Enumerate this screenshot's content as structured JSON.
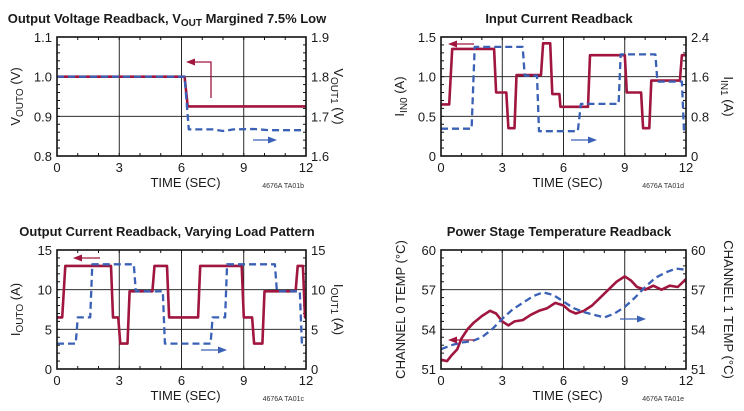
{
  "colors": {
    "ch0": "#a0163f",
    "ch1": "#3a61b6",
    "arrow_left": "#a0163f",
    "arrow_right": "#3a61b6"
  },
  "chart_data": [
    {
      "id": "vout",
      "type": "line",
      "title": "Output Voltage Readback, VOUT Margined 7.5% Low",
      "title_parts": [
        "Output Voltage Readback, V",
        "OUT",
        " Margined 7.5% Low"
      ],
      "xlabel": "TIME (SEC)",
      "ylabel_left": "VOUTO (V)",
      "ylabel_left_parts": [
        "V",
        "OUTO",
        " (V)"
      ],
      "ylabel_right": "VOUT1 (V)",
      "ylabel_right_parts": [
        "V",
        "OUT1",
        " (V)"
      ],
      "code": "4676A TA01b",
      "xlim": [
        0,
        12
      ],
      "ylim_left": [
        0.8,
        1.1
      ],
      "ylim_right": [
        1.6,
        1.9
      ],
      "x_ticks": [
        "0",
        "3",
        "6",
        "9",
        "12"
      ],
      "y_ticks_left": [
        "0.8",
        "0.9",
        "1.0",
        "1.1"
      ],
      "y_ticks_right": [
        "1.6",
        "1.7",
        "1.8",
        "1.9"
      ],
      "grid": true,
      "series": [
        {
          "axis": "left",
          "style": "solid",
          "points": [
            [
              0,
              1.0
            ],
            [
              6.15,
              1.0
            ],
            [
              6.3,
              0.925
            ],
            [
              12,
              0.925
            ]
          ]
        },
        {
          "axis": "right",
          "style": "dashed",
          "points": [
            [
              0,
              1.8
            ],
            [
              6.15,
              1.8
            ],
            [
              6.35,
              1.667
            ],
            [
              7.5,
              1.667
            ],
            [
              8.0,
              1.663
            ],
            [
              8.5,
              1.667
            ],
            [
              9.5,
              1.668
            ],
            [
              10.2,
              1.665
            ],
            [
              12,
              1.665
            ]
          ]
        }
      ]
    },
    {
      "id": "iin",
      "type": "line",
      "title": "Input Current Readback",
      "title_parts": [
        "Input Current Readback",
        "",
        ""
      ],
      "xlabel": "TIME (SEC)",
      "ylabel_left": "IIN0 (A)",
      "ylabel_left_parts": [
        "I",
        "IN0",
        " (A)"
      ],
      "ylabel_right": "IIN1 (A)",
      "ylabel_right_parts": [
        "I",
        "IN1",
        " (A)"
      ],
      "code": "4676A TA01d",
      "xlim": [
        0,
        12
      ],
      "ylim_left": [
        0,
        1.5
      ],
      "ylim_right": [
        0,
        2.4
      ],
      "x_ticks": [
        "0",
        "3",
        "6",
        "9",
        "12"
      ],
      "y_ticks_left": [
        "0",
        "0.5",
        "1.0",
        "1.5"
      ],
      "y_ticks_right": [
        "0",
        "0.8",
        "1.6",
        "2.4"
      ],
      "grid": true,
      "series": [
        {
          "axis": "left",
          "style": "solid",
          "points": [
            [
              0,
              0.65
            ],
            [
              0.4,
              0.65
            ],
            [
              0.55,
              1.35
            ],
            [
              2.6,
              1.35
            ],
            [
              2.7,
              0.8
            ],
            [
              3.2,
              0.8
            ],
            [
              3.3,
              0.35
            ],
            [
              3.6,
              0.35
            ],
            [
              3.7,
              1.02
            ],
            [
              4.9,
              1.02
            ],
            [
              5.0,
              1.42
            ],
            [
              5.35,
              1.42
            ],
            [
              5.45,
              0.78
            ],
            [
              5.8,
              0.78
            ],
            [
              5.85,
              0.62
            ],
            [
              7.2,
              0.62
            ],
            [
              7.3,
              1.27
            ],
            [
              9.0,
              1.27
            ],
            [
              9.1,
              0.8
            ],
            [
              9.8,
              0.8
            ],
            [
              9.9,
              0.35
            ],
            [
              10.2,
              0.35
            ],
            [
              10.3,
              0.95
            ],
            [
              11.7,
              0.95
            ],
            [
              11.8,
              1.27
            ],
            [
              12,
              1.27
            ]
          ]
        },
        {
          "axis": "right",
          "style": "dashed",
          "points": [
            [
              0,
              0.55
            ],
            [
              1.5,
              0.55
            ],
            [
              1.65,
              2.2
            ],
            [
              4.0,
              2.2
            ],
            [
              4.1,
              1.62
            ],
            [
              4.7,
              1.62
            ],
            [
              4.8,
              0.5
            ],
            [
              6.7,
              0.5
            ],
            [
              6.85,
              1.05
            ],
            [
              8.7,
              1.05
            ],
            [
              8.8,
              2.05
            ],
            [
              10.5,
              2.05
            ],
            [
              10.6,
              1.5
            ],
            [
              11.8,
              1.5
            ],
            [
              11.9,
              0.5
            ],
            [
              12,
              0.5
            ]
          ]
        }
      ]
    },
    {
      "id": "iout",
      "type": "line",
      "title": "Output Current Readback, Varying Load Pattern",
      "title_parts": [
        "Output Current Readback, Varying Load Pattern",
        "",
        ""
      ],
      "xlabel": "TIME (SEC)",
      "ylabel_left": "IOUTO (A)",
      "ylabel_left_parts": [
        "I",
        "OUTO",
        " (A)"
      ],
      "ylabel_right": "IOUT1 (A)",
      "ylabel_right_parts": [
        "I",
        "OUT1",
        " (A)"
      ],
      "code": "4676A TA01c",
      "xlim": [
        0,
        12
      ],
      "ylim_left": [
        0,
        15
      ],
      "ylim_right": [
        0,
        15
      ],
      "x_ticks": [
        "0",
        "3",
        "6",
        "9",
        "12"
      ],
      "y_ticks_left": [
        "0",
        "5",
        "10",
        "15"
      ],
      "y_ticks_right": [
        "0",
        "5",
        "10",
        "15"
      ],
      "grid": true,
      "series": [
        {
          "axis": "left",
          "style": "solid",
          "points": [
            [
              0,
              6.5
            ],
            [
              0.25,
              6.5
            ],
            [
              0.4,
              13
            ],
            [
              2.6,
              13
            ],
            [
              2.7,
              6.5
            ],
            [
              2.95,
              6.5
            ],
            [
              3.05,
              3.2
            ],
            [
              3.4,
              3.2
            ],
            [
              3.5,
              9.8
            ],
            [
              4.6,
              9.8
            ],
            [
              4.7,
              13
            ],
            [
              5.3,
              13
            ],
            [
              5.4,
              6.5
            ],
            [
              6.8,
              6.5
            ],
            [
              6.9,
              13
            ],
            [
              8.9,
              13
            ],
            [
              9.0,
              6.5
            ],
            [
              9.4,
              6.5
            ],
            [
              9.5,
              3.2
            ],
            [
              9.9,
              3.2
            ],
            [
              10.0,
              9.8
            ],
            [
              11.5,
              9.8
            ],
            [
              11.6,
              13
            ],
            [
              11.85,
              13
            ],
            [
              11.95,
              6.5
            ],
            [
              12,
              6.5
            ]
          ]
        },
        {
          "axis": "right",
          "style": "dashed",
          "points": [
            [
              0,
              3.2
            ],
            [
              0.9,
              3.2
            ],
            [
              1.0,
              6.5
            ],
            [
              1.6,
              6.5
            ],
            [
              1.7,
              13.2
            ],
            [
              3.7,
              13.2
            ],
            [
              3.8,
              9.8
            ],
            [
              5.1,
              9.8
            ],
            [
              5.2,
              3.2
            ],
            [
              7.4,
              3.2
            ],
            [
              7.5,
              6.5
            ],
            [
              8.1,
              6.5
            ],
            [
              8.2,
              13.2
            ],
            [
              10.5,
              13.2
            ],
            [
              10.6,
              9.8
            ],
            [
              11.7,
              9.8
            ],
            [
              11.8,
              3.2
            ],
            [
              12,
              3.2
            ]
          ]
        }
      ]
    },
    {
      "id": "temp",
      "type": "line",
      "title": "Power Stage Temperature Readback",
      "title_parts": [
        "Power Stage Temperature Readback",
        "",
        ""
      ],
      "xlabel": "TIME (SEC)",
      "ylabel_left": "CHANNEL 0 TEMP (°C)",
      "ylabel_left_parts": [
        "CHANNEL 0 TEMP (°C)",
        "",
        ""
      ],
      "ylabel_right": "CHANNEL 1 TEMP (°C)",
      "ylabel_right_parts": [
        "CHANNEL 1 TEMP (°C)",
        "",
        ""
      ],
      "code": "4676A TA01e",
      "xlim": [
        0,
        12
      ],
      "ylim_left": [
        51,
        60
      ],
      "ylim_right": [
        51,
        60
      ],
      "x_ticks": [
        "0",
        "3",
        "6",
        "9",
        "12"
      ],
      "y_ticks_left": [
        "51",
        "54",
        "57",
        "60"
      ],
      "y_ticks_right": [
        "51",
        "54",
        "57",
        "60"
      ],
      "grid": true,
      "series": [
        {
          "axis": "left",
          "style": "solid",
          "points": [
            [
              0,
              51.7
            ],
            [
              0.3,
              51.6
            ],
            [
              0.5,
              52.0
            ],
            [
              0.8,
              52.5
            ],
            [
              1.0,
              53.3
            ],
            [
              1.3,
              54.0
            ],
            [
              1.6,
              54.5
            ],
            [
              2.0,
              55.0
            ],
            [
              2.4,
              55.4
            ],
            [
              2.7,
              55.2
            ],
            [
              3.0,
              54.6
            ],
            [
              3.3,
              54.3
            ],
            [
              3.6,
              54.6
            ],
            [
              4.0,
              54.7
            ],
            [
              4.4,
              55.1
            ],
            [
              4.8,
              55.4
            ],
            [
              5.2,
              55.6
            ],
            [
              5.6,
              56.0
            ],
            [
              6.0,
              55.8
            ],
            [
              6.3,
              55.4
            ],
            [
              6.6,
              55.2
            ],
            [
              7.0,
              55.4
            ],
            [
              7.4,
              55.8
            ],
            [
              7.8,
              56.4
            ],
            [
              8.2,
              57.0
            ],
            [
              8.6,
              57.6
            ],
            [
              9.0,
              58.0
            ],
            [
              9.3,
              57.7
            ],
            [
              9.6,
              57.2
            ],
            [
              10.0,
              57.0
            ],
            [
              10.4,
              57.3
            ],
            [
              10.8,
              57.0
            ],
            [
              11.2,
              57.3
            ],
            [
              11.6,
              57.2
            ],
            [
              12,
              57.8
            ]
          ]
        },
        {
          "axis": "right",
          "style": "dashed",
          "points": [
            [
              0,
              52.5
            ],
            [
              0.5,
              52.8
            ],
            [
              1.0,
              53.0
            ],
            [
              1.5,
              53.1
            ],
            [
              2.0,
              53.4
            ],
            [
              2.5,
              54.0
            ],
            [
              3.0,
              54.8
            ],
            [
              3.5,
              55.5
            ],
            [
              4.0,
              56.0
            ],
            [
              4.5,
              56.5
            ],
            [
              5.0,
              56.8
            ],
            [
              5.5,
              56.6
            ],
            [
              6.0,
              56.1
            ],
            [
              6.5,
              55.6
            ],
            [
              7.0,
              55.3
            ],
            [
              7.5,
              55.1
            ],
            [
              8.0,
              54.9
            ],
            [
              8.5,
              55.2
            ],
            [
              9.0,
              55.7
            ],
            [
              9.5,
              56.4
            ],
            [
              10.0,
              57.2
            ],
            [
              10.5,
              57.9
            ],
            [
              11.0,
              58.3
            ],
            [
              11.5,
              58.6
            ],
            [
              12,
              58.5
            ]
          ]
        }
      ]
    }
  ]
}
